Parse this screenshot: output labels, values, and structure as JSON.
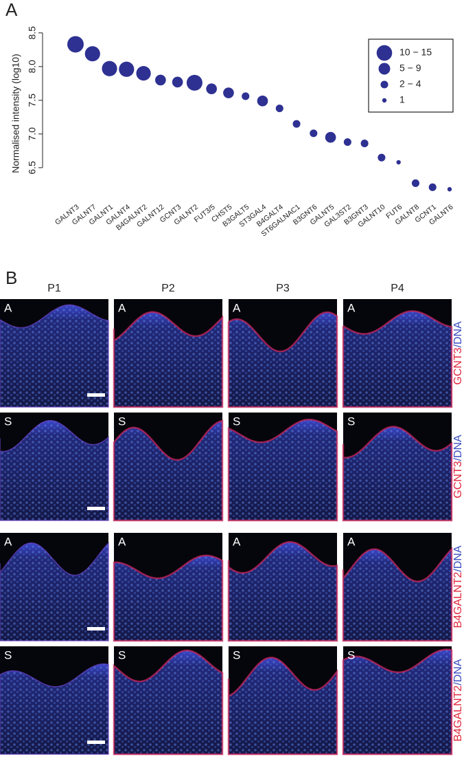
{
  "panel_labels": {
    "a": "A",
    "b": "B"
  },
  "chart_data": {
    "type": "bubble",
    "ylabel": "Normalised intensity (log10)",
    "categories": [
      "GALNT3",
      "GALNT7",
      "GALNT1",
      "GALNT4",
      "B4GALNT2",
      "GALNT12",
      "GCNT3",
      "GALNT2",
      "FUT3/5",
      "CHST5",
      "B3GALT5",
      "ST3GAL4",
      "B4GALT4",
      "ST6GALNAC1",
      "B3GNT6",
      "GALNT5",
      "GAL3ST2",
      "B3GNT3",
      "GALNT10",
      "FUT6",
      "GALNT8",
      "GCNT1",
      "GALNT6"
    ],
    "values": [
      8.33,
      8.19,
      7.97,
      7.96,
      7.9,
      7.8,
      7.77,
      7.76,
      7.67,
      7.61,
      7.56,
      7.49,
      7.38,
      7.15,
      7.01,
      6.95,
      6.88,
      6.86,
      6.65,
      6.58,
      6.27,
      6.21,
      6.18
    ],
    "sizes": [
      14,
      12,
      12,
      12,
      11,
      6,
      6,
      13,
      6,
      6,
      3,
      6,
      3,
      3,
      3,
      6,
      3,
      3,
      3,
      1,
      3,
      3,
      1
    ],
    "color": "#2e3192",
    "ylim": [
      6.05,
      8.6
    ],
    "yticks": [
      6.5,
      {
        "value": 7,
        "label": "7.0"
      },
      7.5,
      {
        "value": 8,
        "label": "8.0"
      },
      8.5
    ],
    "legend": [
      {
        "label": "10 − 15",
        "range": [
          10,
          15
        ]
      },
      {
        "label": "5 − 9",
        "range": [
          5,
          9
        ]
      },
      {
        "label": "2 − 4",
        "range": [
          2,
          4
        ]
      },
      {
        "label": "1",
        "range": [
          1,
          1
        ]
      }
    ],
    "legend_position": "upper right"
  },
  "panel_b": {
    "columns": [
      "P1",
      "P2",
      "P3",
      "P4"
    ],
    "rows": [
      {
        "region": "A",
        "marker": "GCNT3",
        "suffix": "/DNA"
      },
      {
        "region": "S",
        "marker": "GCNT3",
        "suffix": "/DNA"
      },
      {
        "region": "A",
        "marker": "B4GALNT2",
        "suffix": "/DNA"
      },
      {
        "region": "S",
        "marker": "B4GALNT2",
        "suffix": "/DNA"
      }
    ]
  }
}
